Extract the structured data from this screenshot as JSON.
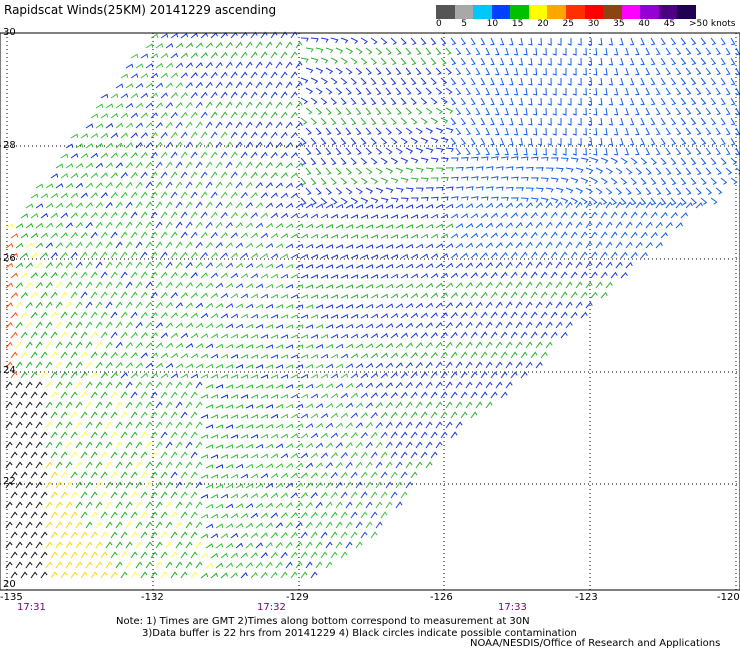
{
  "title": "Rapidscat Winds(25KM) 20141229 ascending",
  "legend": {
    "labels": [
      "0",
      "5",
      "10",
      "15",
      "20",
      "25",
      "30",
      "35",
      "40",
      "45",
      ">50 knots"
    ],
    "colors": [
      "#555555",
      "#a8a8a8",
      "#00c8ff",
      "#0040ff",
      "#00c000",
      "#ffff00",
      "#ffa500",
      "#ff3000",
      "#ff0000",
      "#8b4513",
      "#ff00ff",
      "#9400d3",
      "#4b0082",
      "#200050"
    ]
  },
  "lat_labels": [
    "30",
    "28",
    "26",
    "24",
    "22",
    "20"
  ],
  "lon_labels": [
    "-135",
    "-132",
    "-129",
    "-126",
    "-123",
    "-120"
  ],
  "time_labels": [
    "17:31",
    "17:32",
    "17:33"
  ],
  "notes": {
    "line1": "Note: 1) Times are GMT 2)Times along bottom correspond to measurement at 30N",
    "line2": "3)Data buffer is 22 hrs from 20141229 4) Black circles indicate possible contamination"
  },
  "credit": "NOAA/NESDIS/Office of Research and Applications"
}
